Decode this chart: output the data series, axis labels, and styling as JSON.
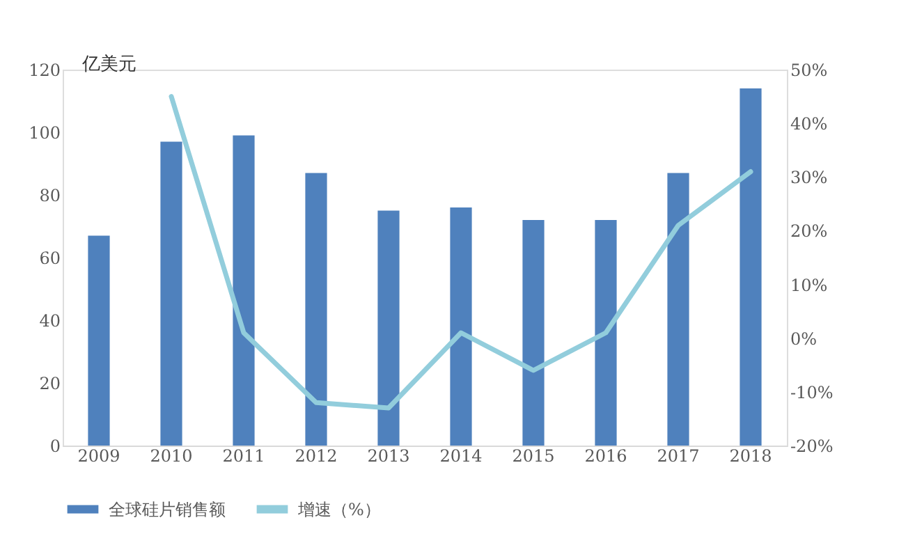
{
  "chart_data": {
    "type": "bar",
    "categories": [
      "2009",
      "2010",
      "2011",
      "2012",
      "2013",
      "2014",
      "2015",
      "2016",
      "2017",
      "2018"
    ],
    "ylabel": "亿美元",
    "series": [
      {
        "name": "全球硅片销售额",
        "color": "#4f81bd",
        "values": [
          67,
          97,
          99,
          87,
          75,
          76,
          72,
          72,
          87,
          114
        ]
      },
      {
        "name": "增速（%）",
        "type": "line",
        "axis": "y2",
        "color": "#92cddc",
        "values": [
          null,
          45,
          1,
          -12,
          -13,
          1,
          -6,
          1,
          21,
          31
        ]
      }
    ],
    "ylim": [
      0,
      120
    ],
    "yticks": [
      0,
      20,
      40,
      60,
      80,
      100,
      120
    ],
    "y2lim": [
      -20,
      50
    ],
    "y2ticks": [
      {
        "value": -20,
        "label": "-20%"
      },
      {
        "value": -10,
        "label": "-10%"
      },
      {
        "value": 0,
        "label": "0%"
      },
      {
        "value": 10,
        "label": "10%"
      },
      {
        "value": 20,
        "label": "20%"
      },
      {
        "value": 30,
        "label": "30%"
      },
      {
        "value": 40,
        "label": "40%"
      },
      {
        "value": 50,
        "label": "50%"
      }
    ],
    "grid": false,
    "legend": "bottom"
  }
}
